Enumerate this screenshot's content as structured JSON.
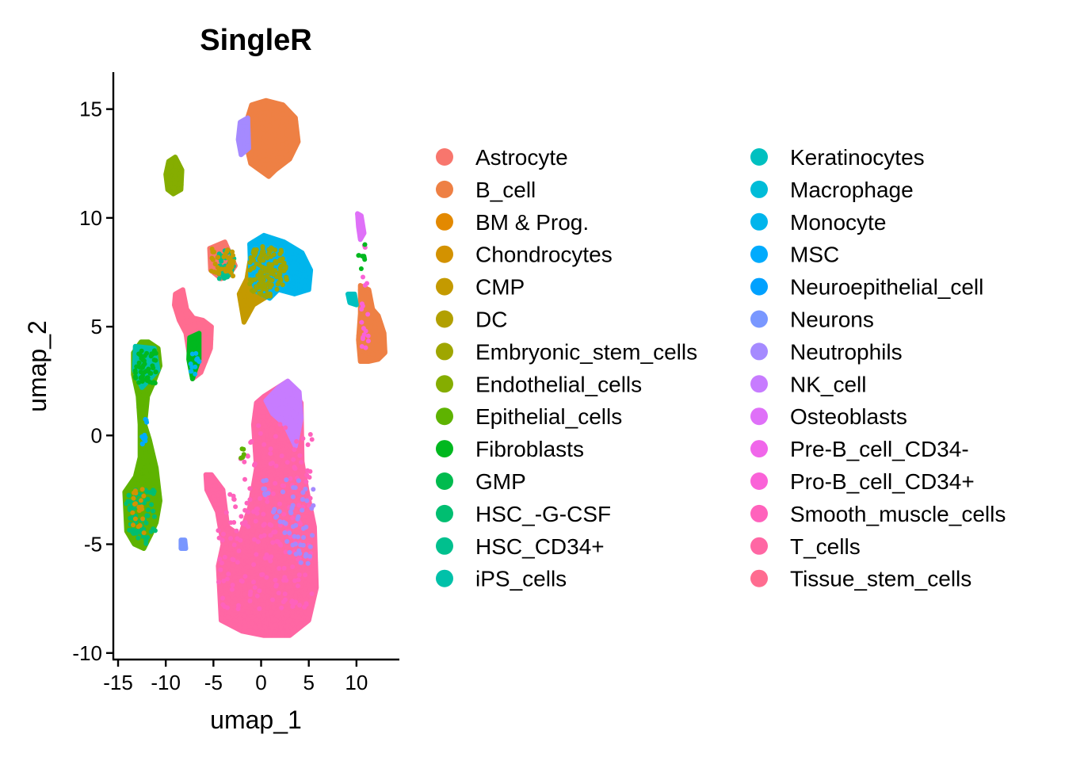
{
  "chart_data": {
    "type": "scatter",
    "title": "SingleR",
    "xlabel": "umap_1",
    "ylabel": "umap_2",
    "xlim": [
      -15.5,
      14.5
    ],
    "ylim": [
      -10.3,
      16.7
    ],
    "x_ticks": [
      -15,
      -10,
      -5,
      0,
      5,
      10
    ],
    "y_ticks": [
      -10,
      -5,
      0,
      5,
      10,
      15
    ],
    "x_tick_labels": [
      "-15",
      "-10",
      "-5",
      "0",
      "5",
      "10"
    ],
    "y_tick_labels": [
      "-10",
      "-5",
      "0",
      "5",
      "10",
      "15"
    ],
    "legend_position": "right",
    "legend_columns": 2,
    "series": [
      {
        "name": "Astrocyte",
        "color": "#F8766D"
      },
      {
        "name": "B_cell",
        "color": "#EE8044"
      },
      {
        "name": "BM & Prog.",
        "color": "#E38900"
      },
      {
        "name": "Chondrocytes",
        "color": "#D39200"
      },
      {
        "name": "CMP",
        "color": "#C49A00"
      },
      {
        "name": "DC",
        "color": "#B2A000"
      },
      {
        "name": "Embryonic_stem_cells",
        "color": "#9FA600"
      },
      {
        "name": "Endothelial_cells",
        "color": "#85AD00"
      },
      {
        "name": "Epithelial_cells",
        "color": "#5EB300"
      },
      {
        "name": "Fibroblasts",
        "color": "#00B81F"
      },
      {
        "name": "GMP",
        "color": "#00BB4E"
      },
      {
        "name": "HSC_-G-CSF",
        "color": "#00BE71"
      },
      {
        "name": "HSC_CD34+",
        "color": "#00C08E"
      },
      {
        "name": "iPS_cells",
        "color": "#00C1A9"
      },
      {
        "name": "Keratinocytes",
        "color": "#00C0C0"
      },
      {
        "name": "Macrophage",
        "color": "#00BCD8"
      },
      {
        "name": "Monocyte",
        "color": "#00B5EC"
      },
      {
        "name": "MSC",
        "color": "#00ABFD"
      },
      {
        "name": "Neuroepithelial_cell",
        "color": "#00A1FF"
      },
      {
        "name": "Neurons",
        "color": "#7997FF"
      },
      {
        "name": "Neutrophils",
        "color": "#A58AFF"
      },
      {
        "name": "NK_cell",
        "color": "#C77CFF"
      },
      {
        "name": "Osteoblasts",
        "color": "#DF70F8"
      },
      {
        "name": "Pre-B_cell_CD34-",
        "color": "#F066EA"
      },
      {
        "name": "Pro-B_cell_CD34+",
        "color": "#FA62D8"
      },
      {
        "name": "Smooth_muscle_cells",
        "color": "#FF62BC"
      },
      {
        "name": "T_cells",
        "color": "#FF67A4"
      },
      {
        "name": "Tissue_stem_cells",
        "color": "#FF6C90"
      }
    ],
    "clusters": [
      {
        "series": "T_cells",
        "polygon": [
          [
            0.3,
            -9.2
          ],
          [
            -2,
            -9
          ],
          [
            -4.2,
            -8.5
          ],
          [
            -4.5,
            -6
          ],
          [
            -4,
            -5
          ],
          [
            -4.6,
            -3.5
          ],
          [
            -5.7,
            -2.5
          ],
          [
            -5.8,
            -1.8
          ],
          [
            -5.2,
            -1.8
          ],
          [
            -4,
            -2.5
          ],
          [
            -3.5,
            -4.2
          ],
          [
            -2.2,
            -4.6
          ],
          [
            -1.2,
            -3.3
          ],
          [
            -0.5,
            -1.5
          ],
          [
            -0.8,
            0.5
          ],
          [
            -0.5,
            1.5
          ],
          [
            0.3,
            1.8
          ],
          [
            2.8,
            2.5
          ],
          [
            4.2,
            1.5
          ],
          [
            4.3,
            -1.2
          ],
          [
            4.8,
            -2.5
          ],
          [
            5.6,
            -4.2
          ],
          [
            5.8,
            -7
          ],
          [
            5,
            -8.5
          ],
          [
            3,
            -9.2
          ]
        ],
        "n": 2600
      },
      {
        "series": "NK_cell",
        "polygon": [
          [
            0.5,
            1.6
          ],
          [
            1.8,
            2.2
          ],
          [
            2.8,
            2.5
          ],
          [
            4,
            2
          ],
          [
            4.2,
            0.8
          ],
          [
            3.6,
            -0.5
          ],
          [
            2.5,
            0.5
          ],
          [
            1.2,
            1
          ]
        ],
        "n": 170
      },
      {
        "series": "B_cell",
        "polygon": [
          [
            -1.5,
            14.5
          ],
          [
            -1,
            15.2
          ],
          [
            0.5,
            15.4
          ],
          [
            2.3,
            15.2
          ],
          [
            3.6,
            14.6
          ],
          [
            3.9,
            13.5
          ],
          [
            3,
            12.7
          ],
          [
            1.5,
            12.2
          ],
          [
            0.8,
            11.9
          ],
          [
            -1.1,
            12.5
          ],
          [
            -1.7,
            13.6
          ]
        ],
        "n": 600
      },
      {
        "series": "Neutrophils",
        "polygon": [
          [
            -2.2,
            14.4
          ],
          [
            -1.4,
            14.6
          ],
          [
            -1.3,
            13.2
          ],
          [
            -2.1,
            12.9
          ],
          [
            -2.4,
            13.6
          ]
        ],
        "n": 50
      },
      {
        "series": "B_cell",
        "polygon": [
          [
            10.4,
            6.9
          ],
          [
            11.3,
            6.7
          ],
          [
            11.7,
            5.8
          ],
          [
            12.3,
            5.5
          ],
          [
            12.9,
            4.7
          ],
          [
            13,
            3.8
          ],
          [
            12.3,
            3.5
          ],
          [
            11.3,
            3.4
          ],
          [
            10.4,
            3.4
          ],
          [
            10.2,
            4.4
          ],
          [
            10.4,
            5.6
          ]
        ],
        "n": 320
      },
      {
        "series": "Endothelial_cells",
        "polygon": [
          [
            -9.7,
            12.6
          ],
          [
            -9,
            12.8
          ],
          [
            -8.3,
            12.2
          ],
          [
            -8.4,
            11.3
          ],
          [
            -9.2,
            11.1
          ],
          [
            -9.8,
            11.3
          ],
          [
            -10,
            12
          ]
        ],
        "n": 150
      },
      {
        "series": "Epithelial_cells",
        "polygon": [
          [
            -12.6,
            4.3
          ],
          [
            -11.8,
            4.3
          ],
          [
            -10.8,
            4.0
          ],
          [
            -10.6,
            3.2
          ],
          [
            -11.3,
            2.4
          ],
          [
            -11.9,
            1.8
          ],
          [
            -12.2,
            0.5
          ],
          [
            -11.7,
            -0.2
          ],
          [
            -11.0,
            -1.5
          ],
          [
            -10.6,
            -3.0
          ],
          [
            -11.0,
            -4.0
          ],
          [
            -11.5,
            -4.5
          ],
          [
            -12.3,
            -5.2
          ],
          [
            -13.3,
            -5.0
          ],
          [
            -14.1,
            -4.4
          ],
          [
            -14.3,
            -2.6
          ],
          [
            -13.2,
            -1.9
          ],
          [
            -12.7,
            -1.0
          ],
          [
            -12.7,
            0.5
          ],
          [
            -12.9,
            1.8
          ],
          [
            -13.4,
            2.8
          ],
          [
            -13.4,
            3.8
          ]
        ],
        "n": 900
      },
      {
        "series": "iPS_cells",
        "polygon": [
          [
            -13.2,
            4.1
          ],
          [
            -11.2,
            4.0
          ],
          [
            -10.8,
            3.0
          ],
          [
            -12.5,
            2.2
          ],
          [
            -13.3,
            3.0
          ]
        ],
        "n": 110
      },
      {
        "series": "Tissue_stem_cells",
        "polygon": [
          [
            -9.0,
            6.5
          ],
          [
            -8.2,
            6.7
          ],
          [
            -7.8,
            5.8
          ],
          [
            -7.1,
            5.4
          ],
          [
            -6.1,
            5.3
          ],
          [
            -5.2,
            5.0
          ],
          [
            -5.3,
            4.0
          ],
          [
            -6.3,
            2.9
          ],
          [
            -7.2,
            2.6
          ],
          [
            -7.5,
            3.6
          ],
          [
            -7.9,
            4.7
          ],
          [
            -8.6,
            5.3
          ],
          [
            -9.1,
            6.0
          ]
        ],
        "n": 280
      },
      {
        "series": "Fibroblasts",
        "polygon": [
          [
            -7.5,
            4.5
          ],
          [
            -6.5,
            4.7
          ],
          [
            -6.5,
            3.5
          ],
          [
            -7.2,
            2.6
          ],
          [
            -7.6,
            3.5
          ]
        ],
        "n": 35
      },
      {
        "series": "CMP",
        "polygon": [
          [
            -1.0,
            8.5
          ],
          [
            0.5,
            8.8
          ],
          [
            1.0,
            7.5
          ],
          [
            1.2,
            6.5
          ],
          [
            0.3,
            6.3
          ],
          [
            -0.8,
            6.0
          ],
          [
            -1.8,
            5.2
          ],
          [
            -2.3,
            6.5
          ],
          [
            -1.5,
            7.2
          ]
        ],
        "n": 280
      },
      {
        "series": "Monocyte",
        "polygon": [
          [
            -1.2,
            8.8
          ],
          [
            0.3,
            9.2
          ],
          [
            2.4,
            8.9
          ],
          [
            4.3,
            8.4
          ],
          [
            5.2,
            7.6
          ],
          [
            5.0,
            6.7
          ],
          [
            3.5,
            6.5
          ],
          [
            1.8,
            6.7
          ],
          [
            0.9,
            6.3
          ],
          [
            -0.4,
            6.6
          ],
          [
            -1.1,
            7.3
          ]
        ],
        "n": 650
      },
      {
        "series": "Astrocyte",
        "polygon": [
          [
            -5.4,
            8.6
          ],
          [
            -3.8,
            8.9
          ],
          [
            -3.1,
            8.2
          ],
          [
            -2.7,
            7.8
          ],
          [
            -3.5,
            7.3
          ],
          [
            -4.2,
            7.2
          ],
          [
            -5.3,
            7.6
          ]
        ],
        "n": 160
      },
      {
        "series": "Keratinocytes",
        "polygon": [
          [
            9.1,
            6.5
          ],
          [
            9.8,
            6.5
          ],
          [
            10.0,
            6.0
          ],
          [
            9.3,
            6.1
          ]
        ],
        "n": 14
      },
      {
        "series": "Osteoblasts",
        "polygon": [
          [
            10.1,
            10.2
          ],
          [
            10.5,
            10.1
          ],
          [
            10.8,
            9.3
          ],
          [
            10.4,
            9.0
          ],
          [
            10.2,
            9.6
          ]
        ],
        "n": 18
      },
      {
        "series": "Neurons",
        "polygon": [
          [
            -8.4,
            -4.8
          ],
          [
            -8.0,
            -4.8
          ],
          [
            -7.9,
            -5.2
          ],
          [
            -8.4,
            -5.2
          ]
        ],
        "n": 8
      }
    ],
    "speckles": [
      {
        "series": "Smooth_muscle_cells",
        "polygon": [
          [
            -4.5,
            -8
          ],
          [
            5.5,
            -8
          ],
          [
            5.5,
            0
          ],
          [
            -0.5,
            1
          ],
          [
            -4.5,
            -4
          ]
        ],
        "n": 200
      },
      {
        "series": "Neutrophils",
        "polygon": [
          [
            -0.5,
            -2
          ],
          [
            5.5,
            -2
          ],
          [
            5.6,
            -6
          ],
          [
            3.5,
            -6
          ]
        ],
        "n": 60
      },
      {
        "series": "Embryonic_stem_cells",
        "polygon": [
          [
            -1.2,
            8.6
          ],
          [
            2.0,
            8.8
          ],
          [
            3.0,
            7.2
          ],
          [
            1.0,
            6.3
          ],
          [
            -1.2,
            6.6
          ]
        ],
        "n": 140
      },
      {
        "series": "HSC_CD34+",
        "polygon": [
          [
            -4.5,
            8.5
          ],
          [
            -2.8,
            8.5
          ],
          [
            -2.8,
            7.2
          ],
          [
            -4.5,
            7.2
          ]
        ],
        "n": 40
      },
      {
        "series": "CMP",
        "polygon": [
          [
            -5.4,
            8.6
          ],
          [
            -2.8,
            8.5
          ],
          [
            -2.8,
            7.3
          ],
          [
            -5.3,
            7.5
          ]
        ],
        "n": 40
      },
      {
        "series": "HSC_-G-CSF",
        "polygon": [
          [
            -14.2,
            -2.5
          ],
          [
            -11.2,
            -2.5
          ],
          [
            -11.0,
            -4.5
          ],
          [
            -12.3,
            -5.1
          ],
          [
            -14.0,
            -4.5
          ]
        ],
        "n": 70
      },
      {
        "series": "Fibroblasts",
        "polygon": [
          [
            -13.2,
            3.9
          ],
          [
            -11.0,
            3.9
          ],
          [
            -11.0,
            2.4
          ],
          [
            -13.2,
            2.4
          ]
        ],
        "n": 50
      },
      {
        "series": "Chondrocytes",
        "polygon": [
          [
            -13.5,
            -2.4
          ],
          [
            -12.2,
            -2.4
          ],
          [
            -12.2,
            -4.5
          ],
          [
            -13.5,
            -4.5
          ]
        ],
        "n": 20
      },
      {
        "series": "MSC",
        "polygon": [
          [
            -12.6,
            0.8
          ],
          [
            -12.0,
            0.8
          ],
          [
            -12.0,
            -0.5
          ],
          [
            -12.6,
            -0.5
          ]
        ],
        "n": 12
      },
      {
        "series": "Monocyte",
        "polygon": [
          [
            -7.4,
            3.8
          ],
          [
            -6.4,
            3.8
          ],
          [
            -6.4,
            2.8
          ],
          [
            -7.4,
            2.8
          ]
        ],
        "n": 12
      },
      {
        "series": "Pro-B_cell_CD34+",
        "polygon": [
          [
            10.6,
            8.8
          ],
          [
            11.2,
            8.8
          ],
          [
            11.3,
            4.0
          ],
          [
            10.4,
            4.0
          ]
        ],
        "n": 20
      },
      {
        "series": "Fibroblasts",
        "polygon": [
          [
            10.2,
            8.8
          ],
          [
            10.9,
            8.8
          ],
          [
            10.9,
            7.6
          ],
          [
            10.2,
            7.6
          ]
        ],
        "n": 8
      },
      {
        "series": "Epithelial_cells",
        "polygon": [
          [
            -2.3,
            -0.6
          ],
          [
            -1.8,
            -0.6
          ],
          [
            -1.8,
            -1.2
          ],
          [
            -2.3,
            -1.2
          ]
        ],
        "n": 6
      }
    ]
  }
}
